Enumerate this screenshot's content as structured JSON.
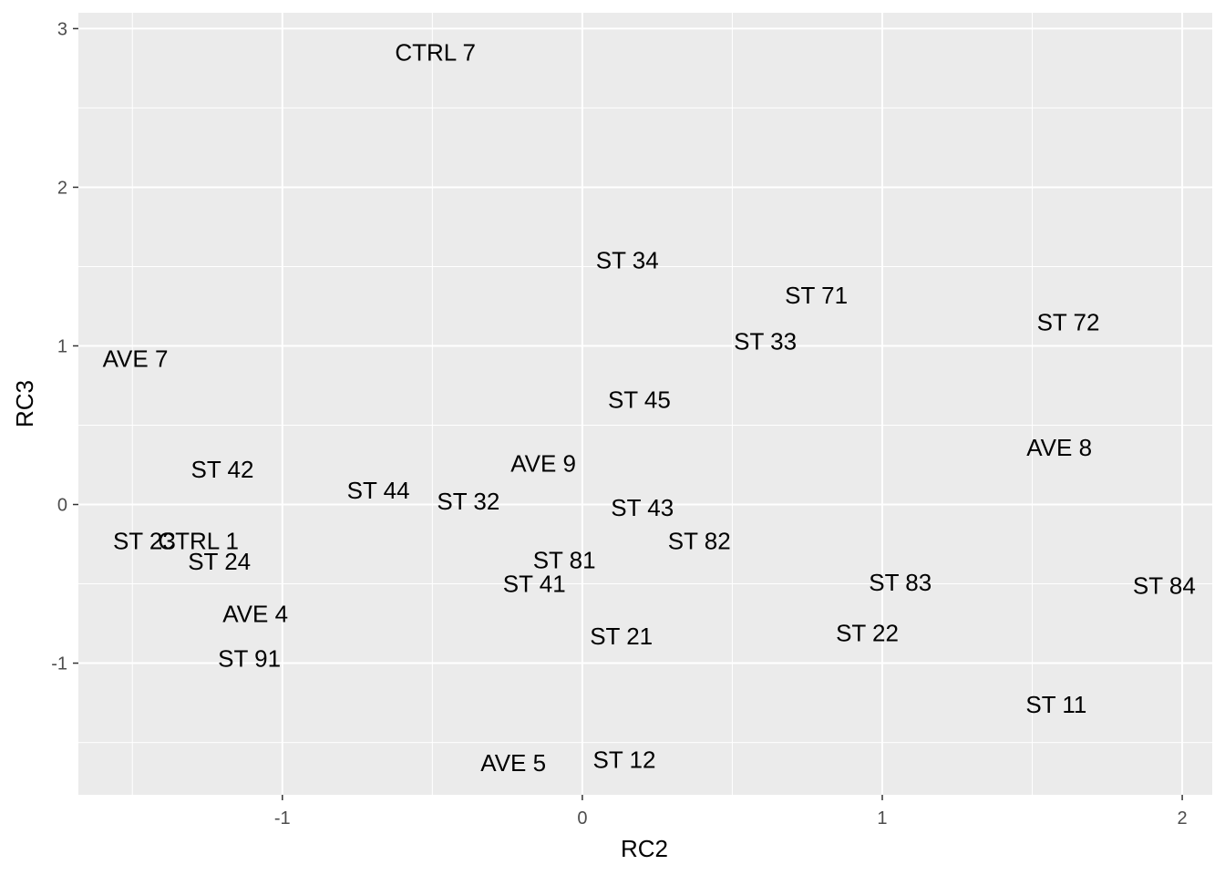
{
  "chart_data": {
    "type": "scatter",
    "title": "",
    "xlabel": "RC2",
    "ylabel": "RC3",
    "xlim": [
      -1.68,
      2.1
    ],
    "ylim": [
      -1.83,
      3.1
    ],
    "x_ticks": [
      -1,
      0,
      1,
      2
    ],
    "y_ticks": [
      -1,
      0,
      1,
      2,
      3
    ],
    "x_tick_labels": [
      "-1",
      "0",
      "1",
      "2"
    ],
    "y_tick_labels": [
      "-1",
      "0",
      "1",
      "2",
      "3"
    ],
    "grid": true,
    "legend": "none",
    "colors": {
      "panel_background": "#ebebeb",
      "grid_line": "#ffffff",
      "label": "#000000",
      "tick_text": "#4d4d4d"
    },
    "points": [
      {
        "label": "CTRL 7",
        "x": -0.49,
        "y": 2.85
      },
      {
        "label": "ST 34",
        "x": 0.15,
        "y": 1.54
      },
      {
        "label": "ST 71",
        "x": 0.78,
        "y": 1.32
      },
      {
        "label": "ST 72",
        "x": 1.62,
        "y": 1.15
      },
      {
        "label": "ST 33",
        "x": 0.61,
        "y": 1.03
      },
      {
        "label": "AVE 7",
        "x": -1.49,
        "y": 0.92
      },
      {
        "label": "ST 45",
        "x": 0.19,
        "y": 0.66
      },
      {
        "label": "AVE 8",
        "x": 1.59,
        "y": 0.36
      },
      {
        "label": "AVE 9",
        "x": -0.13,
        "y": 0.26
      },
      {
        "label": "ST 42",
        "x": -1.2,
        "y": 0.22
      },
      {
        "label": "ST 44",
        "x": -0.68,
        "y": 0.09
      },
      {
        "label": "ST 32",
        "x": -0.38,
        "y": 0.02
      },
      {
        "label": "ST 43",
        "x": 0.2,
        "y": -0.02
      },
      {
        "label": "ST 23",
        "x": -1.46,
        "y": -0.23
      },
      {
        "label": "CTRL 1",
        "x": -1.28,
        "y": -0.23
      },
      {
        "label": "ST 82",
        "x": 0.39,
        "y": -0.23
      },
      {
        "label": "ST 24",
        "x": -1.21,
        "y": -0.36
      },
      {
        "label": "ST 81",
        "x": -0.06,
        "y": -0.35
      },
      {
        "label": "ST 41",
        "x": -0.16,
        "y": -0.5
      },
      {
        "label": "ST 83",
        "x": 1.06,
        "y": -0.49
      },
      {
        "label": "ST 84",
        "x": 1.94,
        "y": -0.51
      },
      {
        "label": "AVE 4",
        "x": -1.09,
        "y": -0.69
      },
      {
        "label": "ST 21",
        "x": 0.13,
        "y": -0.83
      },
      {
        "label": "ST 22",
        "x": 0.95,
        "y": -0.81
      },
      {
        "label": "ST 91",
        "x": -1.11,
        "y": -0.97
      },
      {
        "label": "ST 11",
        "x": 1.58,
        "y": -1.26
      },
      {
        "label": "AVE 5",
        "x": -0.23,
        "y": -1.63
      },
      {
        "label": "ST 12",
        "x": 0.14,
        "y": -1.61
      }
    ]
  }
}
